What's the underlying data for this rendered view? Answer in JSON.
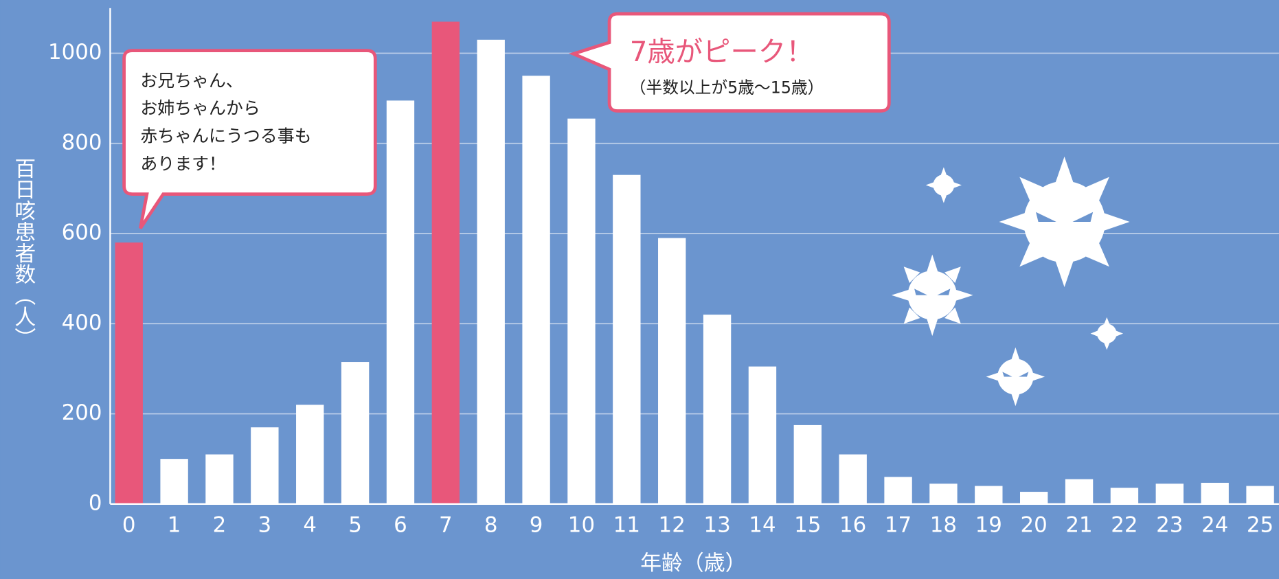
{
  "chart_data": {
    "type": "bar",
    "y_label": "百日咳患者数（人）",
    "x_label": "年齢（歳）",
    "categories": [
      "0",
      "1",
      "2",
      "3",
      "4",
      "5",
      "6",
      "7",
      "8",
      "9",
      "10",
      "11",
      "12",
      "13",
      "14",
      "15",
      "16",
      "17",
      "18",
      "19",
      "20",
      "21",
      "22",
      "23",
      "24",
      "25"
    ],
    "values": [
      580,
      100,
      110,
      170,
      220,
      315,
      895,
      1070,
      1030,
      950,
      855,
      730,
      590,
      420,
      305,
      175,
      110,
      60,
      45,
      40,
      27,
      55,
      36,
      45,
      47,
      40
    ],
    "colors": [
      "#e8577a",
      "#ffffff",
      "#ffffff",
      "#ffffff",
      "#ffffff",
      "#ffffff",
      "#ffffff",
      "#e8577a",
      "#ffffff",
      "#ffffff",
      "#ffffff",
      "#ffffff",
      "#ffffff",
      "#ffffff",
      "#ffffff",
      "#ffffff",
      "#ffffff",
      "#ffffff",
      "#ffffff",
      "#ffffff",
      "#ffffff",
      "#ffffff",
      "#ffffff",
      "#ffffff",
      "#ffffff",
      "#ffffff"
    ],
    "ylim": [
      0,
      1100
    ],
    "yticks": [
      0,
      200,
      400,
      600,
      800,
      1000
    ],
    "grid": true,
    "annotations": [
      {
        "lines": [
          "お兄ちゃん、",
          "お姉ちゃんから",
          "赤ちゃんにうつる事も",
          "あります！"
        ]
      },
      {
        "lines": [
          "7歳がピーク！",
          "（半数以上が5歳〜15歳）"
        ]
      }
    ]
  }
}
